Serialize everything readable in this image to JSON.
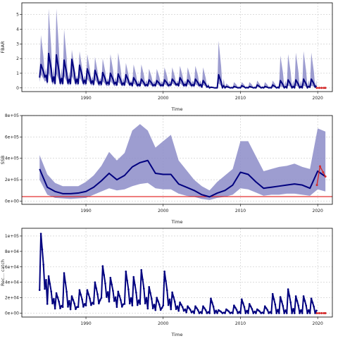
{
  "colors": {
    "median_line": "#00007f",
    "ribbon_fill": "#8c8cc8",
    "forecast": "#d42a2a",
    "reference_line": "#e01818",
    "grid": "#c8c8c8",
    "frame": "#000000"
  },
  "chart_data": [
    {
      "type": "line",
      "xlabel": "Time",
      "ylabel": "FBAR",
      "xlim": [
        1981.7,
        2021.9
      ],
      "ylim": [
        -0.25,
        5.8
      ],
      "xticks": [
        1990,
        2000,
        2010,
        2020
      ],
      "yticks": [
        0,
        1,
        2,
        3,
        4,
        5
      ],
      "ytick_labels": [
        "0",
        "1",
        "2",
        "3",
        "4",
        "5"
      ],
      "grid": true,
      "series": [
        {
          "role": "median",
          "seasonal": true,
          "years": [
            1984,
            1985,
            1986,
            1987,
            1988,
            1989,
            1990,
            1991,
            1992,
            1993,
            1994,
            1995,
            1996,
            1997,
            1998,
            1999,
            2000,
            2001,
            2002,
            2003,
            2004,
            2005,
            2006,
            2007,
            2008,
            2009,
            2010,
            2011,
            2012,
            2013,
            2014,
            2015,
            2016,
            2017,
            2018,
            2019
          ],
          "peak": [
            1.6,
            2.35,
            2.25,
            1.9,
            1.95,
            1.55,
            1.3,
            1.2,
            1.05,
            1.0,
            0.95,
            0.9,
            0.7,
            0.6,
            0.55,
            0.5,
            0.55,
            0.6,
            0.7,
            0.55,
            0.6,
            0.5,
            0.05,
            0.9,
            0.1,
            0.1,
            0.15,
            0.1,
            0.2,
            0.1,
            0.2,
            0.5,
            0.55,
            0.55,
            0.6,
            0.6
          ],
          "trough": [
            0.7,
            0.4,
            0.3,
            0.3,
            0.3,
            0.3,
            0.3,
            0.25,
            0.25,
            0.25,
            0.2,
            0.2,
            0.15,
            0.15,
            0.15,
            0.15,
            0.15,
            0.2,
            0.15,
            0.15,
            0.15,
            0.05,
            0.0,
            0.0,
            0.0,
            0.0,
            0.0,
            0.0,
            0.0,
            0.0,
            0.0,
            0.0,
            0.0,
            0.0,
            0.0,
            0.05
          ]
        },
        {
          "role": "upper_band",
          "seasonal": true,
          "years": [
            1984,
            1985,
            1986,
            1987,
            1988,
            1989,
            1990,
            1991,
            1992,
            1993,
            1994,
            1995,
            1996,
            1997,
            1998,
            1999,
            2000,
            2001,
            2002,
            2003,
            2004,
            2005,
            2006,
            2007,
            2008,
            2009,
            2010,
            2011,
            2012,
            2013,
            2014,
            2015,
            2016,
            2017,
            2018,
            2019
          ],
          "peak": [
            3.6,
            5.4,
            5.4,
            4.0,
            2.6,
            2.5,
            2.3,
            2.1,
            2.0,
            2.3,
            2.4,
            1.7,
            1.6,
            1.6,
            1.3,
            1.3,
            1.4,
            1.4,
            1.5,
            1.4,
            1.5,
            1.4,
            0.1,
            3.2,
            0.3,
            0.4,
            0.4,
            0.4,
            0.5,
            0.4,
            0.5,
            2.2,
            2.3,
            2.4,
            2.5,
            2.4
          ],
          "trough": [
            0.9,
            0.6,
            0.5,
            0.5,
            0.5,
            0.5,
            0.5,
            0.4,
            0.4,
            0.4,
            0.35,
            0.3,
            0.3,
            0.3,
            0.3,
            0.3,
            0.3,
            0.3,
            0.3,
            0.3,
            0.3,
            0.1,
            0.0,
            0.05,
            0.05,
            0.05,
            0.05,
            0.05,
            0.05,
            0.05,
            0.05,
            0.1,
            0.1,
            0.1,
            0.1,
            0.1
          ]
        },
        {
          "role": "lower_band",
          "seasonal": true,
          "years": [
            1984,
            1985,
            1986,
            1987,
            1988,
            1989,
            1990,
            1991,
            1992,
            1993,
            1994,
            1995,
            1996,
            1997,
            1998,
            1999,
            2000,
            2001,
            2002,
            2003,
            2004,
            2005,
            2006,
            2007,
            2008,
            2009,
            2010,
            2011,
            2012,
            2013,
            2014,
            2015,
            2016,
            2017,
            2018,
            2019
          ],
          "peak": [
            0.9,
            1.0,
            0.95,
            0.8,
            0.8,
            0.7,
            0.6,
            0.55,
            0.45,
            0.45,
            0.4,
            0.4,
            0.3,
            0.3,
            0.25,
            0.25,
            0.25,
            0.3,
            0.3,
            0.25,
            0.25,
            0.2,
            0.0,
            0.3,
            0.0,
            0.0,
            0.05,
            0.0,
            0.05,
            0.0,
            0.05,
            0.1,
            0.15,
            0.15,
            0.15,
            0.15
          ],
          "trough": [
            0.4,
            0.2,
            0.15,
            0.15,
            0.15,
            0.15,
            0.15,
            0.1,
            0.1,
            0.1,
            0.1,
            0.1,
            0.05,
            0.05,
            0.05,
            0.05,
            0.05,
            0.1,
            0.05,
            0.05,
            0.05,
            0.0,
            0.0,
            0.0,
            0.0,
            0.0,
            0.0,
            0.0,
            0.0,
            0.0,
            0.0,
            0.0,
            0.0,
            0.0,
            0.0,
            0.0
          ]
        },
        {
          "role": "forecast",
          "x": [
            2019.9,
            2020.2,
            2020.5,
            2020.8,
            2021.0
          ],
          "y": [
            0,
            0,
            0,
            0,
            0
          ]
        }
      ]
    },
    {
      "type": "line",
      "xlabel": "Time",
      "ylabel": "SSB",
      "xlim": [
        1981.7,
        2021.9
      ],
      "ylim": [
        -30000,
        800000
      ],
      "xticks": [
        1990,
        2000,
        2010,
        2020
      ],
      "yticks": [
        0,
        200000,
        400000,
        600000,
        800000
      ],
      "ytick_labels": [
        "0e+00",
        "2e+05",
        "4e+05",
        "6e+05",
        "8e+05"
      ],
      "grid": true,
      "hline": 42000,
      "series": [
        {
          "role": "median",
          "x": [
            1984,
            1985,
            1986,
            1987,
            1988,
            1989,
            1990,
            1991,
            1992,
            1993,
            1994,
            1995,
            1996,
            1997,
            1998,
            1999,
            2000,
            2001,
            2002,
            2003,
            2004,
            2005,
            2006,
            2007,
            2008,
            2009,
            2010,
            2011,
            2012,
            2013,
            2014,
            2015,
            2016,
            2017,
            2018,
            2019,
            2020,
            2021
          ],
          "y": [
            300000,
            130000,
            90000,
            70000,
            70000,
            75000,
            90000,
            130000,
            190000,
            260000,
            200000,
            240000,
            320000,
            360000,
            380000,
            260000,
            250000,
            250000,
            160000,
            130000,
            100000,
            60000,
            40000,
            75000,
            100000,
            150000,
            270000,
            250000,
            180000,
            120000,
            130000,
            140000,
            150000,
            160000,
            150000,
            120000,
            280000,
            230000
          ]
        },
        {
          "role": "upper_band",
          "x": [
            1984,
            1985,
            1986,
            1987,
            1988,
            1989,
            1990,
            1991,
            1992,
            1993,
            1994,
            1995,
            1996,
            1997,
            1998,
            1999,
            2000,
            2001,
            2002,
            2003,
            2004,
            2005,
            2006,
            2007,
            2008,
            2009,
            2010,
            2011,
            2012,
            2013,
            2014,
            2015,
            2016,
            2017,
            2018,
            2019,
            2020,
            2021
          ],
          "y": [
            430000,
            250000,
            170000,
            140000,
            140000,
            140000,
            180000,
            240000,
            330000,
            460000,
            380000,
            450000,
            660000,
            720000,
            660000,
            500000,
            560000,
            620000,
            380000,
            290000,
            200000,
            140000,
            100000,
            180000,
            240000,
            300000,
            560000,
            560000,
            420000,
            280000,
            300000,
            320000,
            330000,
            350000,
            320000,
            300000,
            680000,
            650000
          ]
        },
        {
          "role": "lower_band",
          "x": [
            1984,
            1985,
            1986,
            1987,
            1988,
            1989,
            1990,
            1991,
            1992,
            1993,
            1994,
            1995,
            1996,
            1997,
            1998,
            1999,
            2000,
            2001,
            2002,
            2003,
            2004,
            2005,
            2006,
            2007,
            2008,
            2009,
            2010,
            2011,
            2012,
            2013,
            2014,
            2015,
            2016,
            2017,
            2018,
            2019,
            2020,
            2021
          ],
          "y": [
            200000,
            60000,
            30000,
            25000,
            20000,
            25000,
            30000,
            60000,
            90000,
            120000,
            100000,
            110000,
            140000,
            160000,
            170000,
            120000,
            110000,
            110000,
            70000,
            50000,
            40000,
            20000,
            10000,
            30000,
            40000,
            60000,
            120000,
            110000,
            80000,
            50000,
            60000,
            60000,
            70000,
            70000,
            60000,
            50000,
            110000,
            90000
          ]
        },
        {
          "role": "forecast",
          "x": [
            2019.9,
            2020.3,
            2020.7,
            2021.0
          ],
          "y": [
            150000,
            325000,
            270000,
            230000
          ]
        }
      ]
    },
    {
      "type": "line",
      "xlabel": "Time",
      "ylabel": "Rec... catch",
      "xlim": [
        1981.7,
        2021.9
      ],
      "ylim": [
        -5000,
        110000
      ],
      "xticks": [
        1990,
        2000,
        2010,
        2020
      ],
      "yticks": [
        0,
        20000,
        40000,
        60000,
        80000,
        100000
      ],
      "ytick_labels": [
        "0e+00",
        "2e+04",
        "4e+04",
        "6e+04",
        "8e+04",
        "1e+05"
      ],
      "grid": true,
      "series": [
        {
          "role": "observed",
          "seasonal": true,
          "years": [
            1984,
            1985,
            1986,
            1987,
            1988,
            1989,
            1990,
            1991,
            1992,
            1993,
            1994,
            1995,
            1996,
            1997,
            1998,
            1999,
            2000,
            2001,
            2002,
            2003,
            2004,
            2005,
            2006,
            2007,
            2008,
            2009,
            2010,
            2011,
            2012,
            2013,
            2014,
            2015,
            2016,
            2017,
            2018,
            2019
          ],
          "peak": [
            103000,
            48000,
            26000,
            52000,
            22000,
            30000,
            30000,
            40000,
            61000,
            46000,
            28000,
            54000,
            47000,
            56000,
            34000,
            20000,
            54000,
            27000,
            14000,
            9000,
            9000,
            9000,
            19000,
            4000,
            5000,
            10000,
            18000,
            12000,
            5000,
            9000,
            25000,
            21000,
            31000,
            22000,
            22000,
            19000
          ],
          "trough": [
            30000,
            12000,
            6000,
            8000,
            5000,
            8000,
            10000,
            12000,
            20000,
            15000,
            8000,
            12000,
            10000,
            12000,
            6000,
            4000,
            10000,
            5000,
            3000,
            1000,
            0,
            0,
            0,
            0,
            0,
            0,
            0,
            0,
            0,
            0,
            0,
            0,
            0,
            0,
            0,
            0
          ]
        },
        {
          "role": "forecast",
          "x": [
            2019.9,
            2020.2,
            2020.5,
            2020.8,
            2021.0
          ],
          "y": [
            0,
            0,
            0,
            0,
            0
          ]
        }
      ]
    }
  ]
}
